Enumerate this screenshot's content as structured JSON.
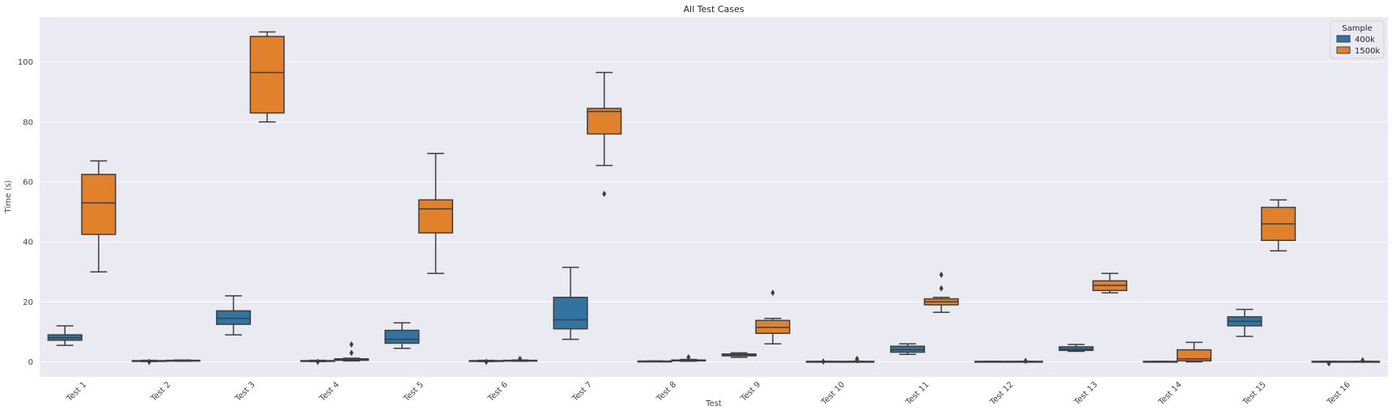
{
  "chart_data": {
    "type": "box",
    "title": "All Test Cases",
    "xlabel": "Test",
    "ylabel": "Time (s)",
    "ylim": [
      -5,
      115
    ],
    "yticks": [
      0,
      20,
      40,
      60,
      80,
      100
    ],
    "grid": true,
    "legend": {
      "title": "Sample",
      "position": "top-right"
    },
    "categories": [
      "Test 1",
      "Test 2",
      "Test 3",
      "Test 4",
      "Test 5",
      "Test 6",
      "Test 7",
      "Test 8",
      "Test 9",
      "Test 10",
      "Test 11",
      "Test 12",
      "Test 13",
      "Test 14",
      "Test 15",
      "Test 16"
    ],
    "series": [
      {
        "name": "400k",
        "color": "#3274a1",
        "boxes": [
          {
            "min": 5.5,
            "q1": 7.2,
            "median": 8.0,
            "q3": 9.0,
            "max": 12.0,
            "outliers": []
          },
          {
            "min": 0.1,
            "q1": 0.2,
            "median": 0.3,
            "q3": 0.4,
            "max": 0.5,
            "outliers": [
              0.0
            ]
          },
          {
            "min": 9.0,
            "q1": 12.5,
            "median": 14.5,
            "q3": 17.0,
            "max": 22.0,
            "outliers": []
          },
          {
            "min": 0.1,
            "q1": 0.2,
            "median": 0.3,
            "q3": 0.4,
            "max": 0.5,
            "outliers": [
              0.0
            ]
          },
          {
            "min": 4.5,
            "q1": 6.2,
            "median": 7.5,
            "q3": 10.5,
            "max": 13.0,
            "outliers": []
          },
          {
            "min": 0.1,
            "q1": 0.2,
            "median": 0.3,
            "q3": 0.4,
            "max": 0.5,
            "outliers": [
              0.0
            ]
          },
          {
            "min": 7.5,
            "q1": 11.0,
            "median": 14.0,
            "q3": 21.5,
            "max": 31.5,
            "outliers": []
          },
          {
            "min": 0.1,
            "q1": 0.15,
            "median": 0.2,
            "q3": 0.25,
            "max": 0.3,
            "outliers": []
          },
          {
            "min": 1.5,
            "q1": 2.0,
            "median": 2.2,
            "q3": 2.6,
            "max": 3.0,
            "outliers": []
          },
          {
            "min": 0.0,
            "q1": 0.05,
            "median": 0.1,
            "q3": 0.15,
            "max": 0.2,
            "outliers": [
              0.1
            ]
          },
          {
            "min": 2.5,
            "q1": 3.2,
            "median": 4.0,
            "q3": 5.2,
            "max": 6.0,
            "outliers": []
          },
          {
            "min": 0.0,
            "q1": 0.05,
            "median": 0.1,
            "q3": 0.15,
            "max": 0.2,
            "outliers": []
          },
          {
            "min": 3.5,
            "q1": 3.8,
            "median": 4.2,
            "q3": 5.0,
            "max": 5.8,
            "outliers": []
          },
          {
            "min": 0.0,
            "q1": 0.05,
            "median": 0.1,
            "q3": 0.15,
            "max": 0.2,
            "outliers": []
          },
          {
            "min": 8.5,
            "q1": 12.0,
            "median": 13.5,
            "q3": 15.0,
            "max": 17.5,
            "outliers": []
          },
          {
            "min": 0.0,
            "q1": 0.05,
            "median": 0.1,
            "q3": 0.15,
            "max": 0.2,
            "outliers": [
              -0.5
            ]
          }
        ]
      },
      {
        "name": "1500k",
        "color": "#e1812c",
        "boxes": [
          {
            "min": 30.0,
            "q1": 42.5,
            "median": 53.0,
            "q3": 62.5,
            "max": 67.0,
            "outliers": []
          },
          {
            "min": 0.2,
            "q1": 0.3,
            "median": 0.4,
            "q3": 0.5,
            "max": 0.6,
            "outliers": []
          },
          {
            "min": 80.0,
            "q1": 83.0,
            "median": 96.5,
            "q3": 108.5,
            "max": 110.0,
            "outliers": []
          },
          {
            "min": 0.3,
            "q1": 0.5,
            "median": 0.7,
            "q3": 1.0,
            "max": 1.2,
            "outliers": [
              3.0,
              5.8
            ]
          },
          {
            "min": 29.5,
            "q1": 43.0,
            "median": 51.0,
            "q3": 54.0,
            "max": 69.5,
            "outliers": []
          },
          {
            "min": 0.2,
            "q1": 0.3,
            "median": 0.4,
            "q3": 0.5,
            "max": 0.6,
            "outliers": [
              1.0
            ]
          },
          {
            "min": 65.5,
            "q1": 76.0,
            "median": 83.5,
            "q3": 84.5,
            "max": 96.5,
            "outliers": [
              56.0
            ]
          },
          {
            "min": 0.2,
            "q1": 0.3,
            "median": 0.4,
            "q3": 0.6,
            "max": 0.8,
            "outliers": [
              1.5
            ]
          },
          {
            "min": 6.0,
            "q1": 9.5,
            "median": 11.5,
            "q3": 13.8,
            "max": 14.5,
            "outliers": [
              23.0
            ]
          },
          {
            "min": 0.0,
            "q1": 0.05,
            "median": 0.1,
            "q3": 0.15,
            "max": 0.2,
            "outliers": [
              0.5,
              1.0
            ]
          },
          {
            "min": 16.5,
            "q1": 19.0,
            "median": 20.0,
            "q3": 21.0,
            "max": 21.5,
            "outliers": [
              24.5,
              29.0
            ]
          },
          {
            "min": 0.0,
            "q1": 0.05,
            "median": 0.1,
            "q3": 0.15,
            "max": 0.2,
            "outliers": [
              0.3
            ]
          },
          {
            "min": 23.0,
            "q1": 23.8,
            "median": 25.5,
            "q3": 27.0,
            "max": 29.5,
            "outliers": []
          },
          {
            "min": 0.0,
            "q1": 0.3,
            "median": 1.0,
            "q3": 4.0,
            "max": 6.5,
            "outliers": []
          },
          {
            "min": 37.0,
            "q1": 40.5,
            "median": 46.0,
            "q3": 51.5,
            "max": 54.0,
            "outliers": []
          },
          {
            "min": 0.0,
            "q1": 0.05,
            "median": 0.1,
            "q3": 0.15,
            "max": 0.2,
            "outliers": [
              0.5
            ]
          }
        ]
      }
    ]
  }
}
